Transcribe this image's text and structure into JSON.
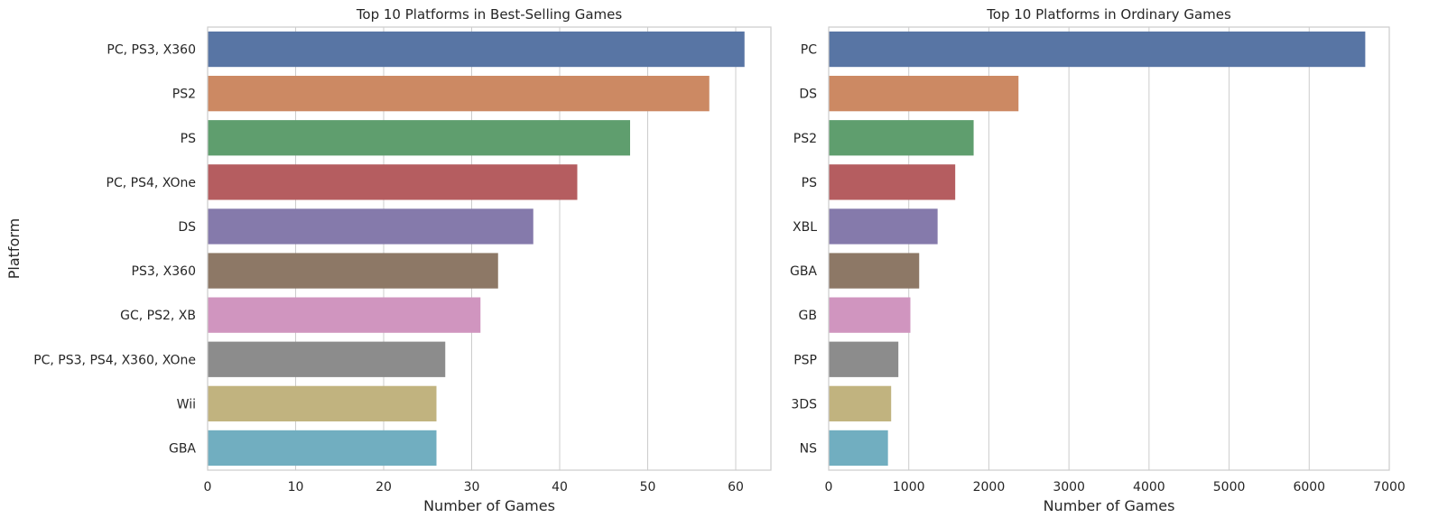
{
  "chart_data": [
    {
      "type": "bar",
      "orientation": "horizontal",
      "title": "Top 10 Platforms in Best-Selling Games",
      "xlabel": "Number of Games",
      "ylabel": "Platform",
      "xlim": [
        0,
        64
      ],
      "xticks": [
        0,
        10,
        20,
        30,
        40,
        50,
        60
      ],
      "grid": true,
      "categories": [
        "PC, PS3, X360",
        "PS2",
        "PS",
        "PC, PS4, XOne",
        "DS",
        "PS3, X360",
        "GC, PS2, XB",
        "PC, PS3, PS4, X360, XOne",
        "Wii",
        "GBA"
      ],
      "values": [
        61,
        57,
        48,
        42,
        37,
        33,
        31,
        27,
        26,
        26
      ],
      "colors": [
        "#5875a4",
        "#cc8963",
        "#5f9e6e",
        "#b55d60",
        "#857aab",
        "#8d7866",
        "#d095bf",
        "#8c8c8c",
        "#c1b37f",
        "#71aec0"
      ]
    },
    {
      "type": "bar",
      "orientation": "horizontal",
      "title": "Top 10 Platforms in Ordinary Games",
      "xlabel": "Number of Games",
      "ylabel": "",
      "xlim": [
        0,
        7000
      ],
      "xticks": [
        0,
        1000,
        2000,
        3000,
        4000,
        5000,
        6000,
        7000
      ],
      "grid": true,
      "categories": [
        "PC",
        "DS",
        "PS2",
        "PS",
        "XBL",
        "GBA",
        "GB",
        "PSP",
        "3DS",
        "NS"
      ],
      "values": [
        6700,
        2370,
        1810,
        1580,
        1360,
        1130,
        1020,
        870,
        780,
        740
      ],
      "colors": [
        "#5875a4",
        "#cc8963",
        "#5f9e6e",
        "#b55d60",
        "#857aab",
        "#8d7866",
        "#d095bf",
        "#8c8c8c",
        "#c1b37f",
        "#71aec0"
      ]
    }
  ]
}
